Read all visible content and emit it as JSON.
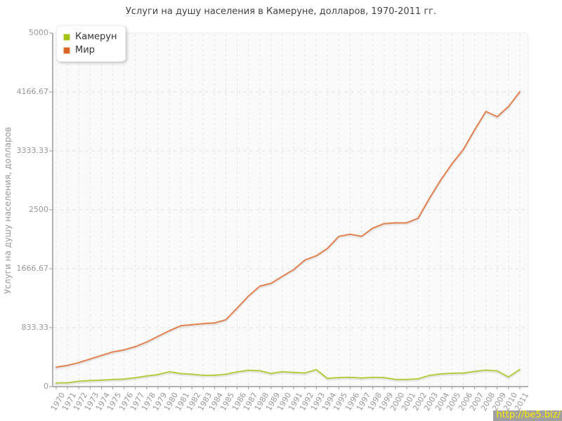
{
  "watermark": "http://be5.biz/",
  "colors": {
    "title_text": "#444444",
    "axis_text": "#999999",
    "axis_line": "#999999",
    "gridline": "#e2e2e2",
    "plot_bg": "#fafafa",
    "plot_border": "#ececec",
    "watermark_bg": "#a0a0a0",
    "watermark_text": "#ffee00"
  },
  "chart_data": {
    "type": "line",
    "title": "Услуги на душу населения в Камеруне, долларов, 1970-2011 гг.",
    "xlabel": "",
    "ylabel": "Услуги на душу населения, долларов",
    "ylim": [
      0,
      5000
    ],
    "grid": true,
    "legend_position": "top-left",
    "yticks": [
      {
        "label": "0",
        "value": 0
      },
      {
        "label": "833.33",
        "value": 833.33
      },
      {
        "label": "1666.67",
        "value": 1666.67
      },
      {
        "label": "2500",
        "value": 2500
      },
      {
        "label": "3333.33",
        "value": 3333.33
      },
      {
        "label": "4166.67",
        "value": 4166.67
      },
      {
        "label": "5000",
        "value": 5000
      }
    ],
    "x": [
      1970,
      1971,
      1972,
      1973,
      1974,
      1975,
      1976,
      1977,
      1978,
      1979,
      1980,
      1981,
      1982,
      1983,
      1984,
      1985,
      1986,
      1987,
      1988,
      1989,
      1990,
      1991,
      1992,
      1993,
      1994,
      1995,
      1996,
      1997,
      1998,
      1999,
      2000,
      2001,
      2002,
      2003,
      2004,
      2005,
      2006,
      2007,
      2008,
      2009,
      2010,
      2011
    ],
    "series": [
      {
        "name": "Камерун",
        "color": "#a2c314",
        "values": [
          52,
          55,
          75,
          85,
          92,
          100,
          106,
          125,
          150,
          170,
          210,
          185,
          175,
          160,
          160,
          175,
          208,
          230,
          224,
          186,
          210,
          200,
          192,
          240,
          116,
          128,
          132,
          122,
          132,
          128,
          102,
          100,
          110,
          158,
          180,
          188,
          192,
          214,
          233,
          222,
          137,
          242
        ]
      },
      {
        "name": "Мир",
        "color": "#dd6426",
        "values": [
          275,
          300,
          340,
          390,
          440,
          490,
          520,
          565,
          630,
          710,
          790,
          860,
          875,
          890,
          900,
          945,
          1110,
          1280,
          1420,
          1460,
          1560,
          1655,
          1790,
          1850,
          1955,
          2125,
          2155,
          2125,
          2240,
          2305,
          2315,
          2315,
          2380,
          2660,
          2920,
          3150,
          3350,
          3630,
          3890,
          3815,
          3960,
          4170
        ]
      }
    ]
  }
}
